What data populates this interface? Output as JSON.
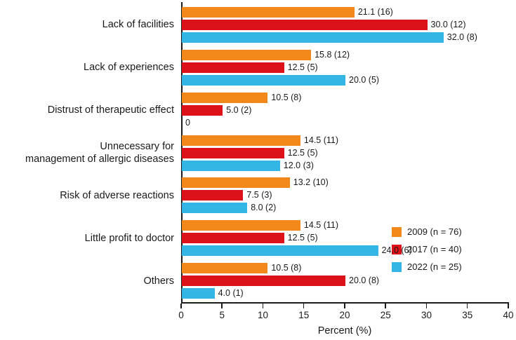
{
  "chart_data": {
    "type": "bar",
    "orientation": "horizontal",
    "title": "",
    "xlabel": "Percent (%)",
    "xlim": [
      0,
      40
    ],
    "xticks": [
      "0",
      "5",
      "10",
      "15",
      "20",
      "25",
      "30",
      "35",
      "40"
    ],
    "grid": false,
    "legend_position": "right-middle",
    "categories": [
      "Lack of facilities",
      "Lack of experiences",
      "Distrust of therapeutic effect",
      "Unnecessary for\nmanagement of allergic diseases",
      "Risk of adverse reactions",
      "Little profit to doctor",
      "Others"
    ],
    "series": [
      {
        "name": "2009 (n = 76)",
        "color": "#F2871A",
        "values": [
          21.1,
          15.8,
          10.5,
          14.5,
          13.2,
          14.5,
          10.5
        ],
        "labels": [
          "21.1 (16)",
          "15.8 (12)",
          "10.5 (8)",
          "14.5 (11)",
          "13.2 (10)",
          "14.5 (11)",
          "10.5 (8)"
        ]
      },
      {
        "name": "2017 (n = 40)",
        "color": "#DD1119",
        "values": [
          30.0,
          12.5,
          5.0,
          12.5,
          7.5,
          12.5,
          20.0
        ],
        "labels": [
          "30.0 (12)",
          "12.5 (5)",
          "5.0 (2)",
          "12.5 (5)",
          "7.5 (3)",
          "12.5 (5)",
          "20.0 (8)"
        ]
      },
      {
        "name": "2022 (n = 25)",
        "color": "#33B5E6",
        "values": [
          32.0,
          20.0,
          0,
          12.0,
          8.0,
          24.0,
          4.0
        ],
        "labels": [
          "32.0 (8)",
          "20.0 (5)",
          "0",
          "12.0 (3)",
          "8.0 (2)",
          "24.0 (6)",
          "4.0 (1)"
        ]
      }
    ]
  }
}
